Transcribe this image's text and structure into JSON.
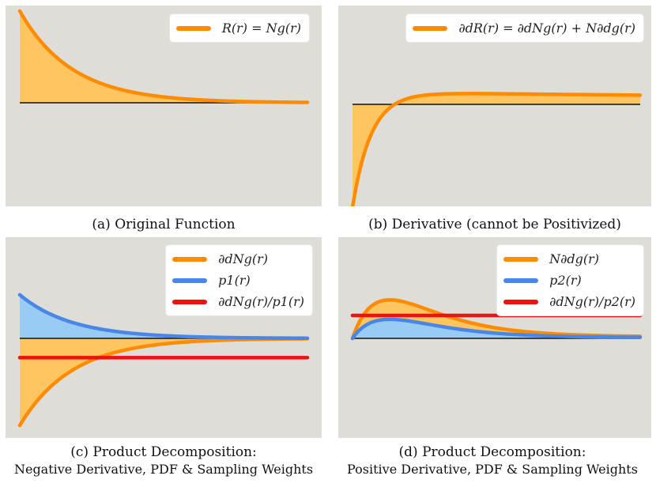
{
  "colors": {
    "orange": "#ff8c00",
    "orange_fill": "#ffc560",
    "blue": "#4a86e8",
    "blue_fill": "#99ccf5",
    "red": "#ee1111",
    "panel_bg": "#deddd7",
    "axis": "#111111"
  },
  "chart_data": [
    {
      "id": "a",
      "type": "area",
      "x_range": [
        0,
        10
      ],
      "ylim": [
        -2,
        2
      ],
      "baseline": 0,
      "caption_lines": [
        "(a) Original Function"
      ],
      "series": [
        {
          "name": "R(r) = Ng(r)",
          "kind": "decay",
          "amplitude": 2.0,
          "rate": 0.55,
          "color": "#ff8c00",
          "fill": "#ffc560"
        }
      ]
    },
    {
      "id": "b",
      "type": "area",
      "x_range": [
        0,
        10
      ],
      "ylim": [
        -2,
        2
      ],
      "baseline": 0,
      "caption_lines": [
        "(b) Derivative (cannot be Positivized)"
      ],
      "series": [
        {
          "name": "∂dR(r) = ∂dNg(r) + N∂dg(r)",
          "kind": "derivative",
          "neg_amp": 2.25,
          "neg_rate": 1.55,
          "pos_amp": 0.27,
          "pos_decay": 0.03,
          "color": "#ff8c00",
          "fill": "#ffc560"
        }
      ]
    },
    {
      "id": "c",
      "type": "area",
      "x_range": [
        0,
        10
      ],
      "ylim": [
        -2,
        2
      ],
      "baseline": 0,
      "caption_lines": [
        "(c) Product Decomposition:",
        "Negative Derivative, PDF & Sampling Weights"
      ],
      "series": [
        {
          "name": "∂dNg(r)",
          "kind": "decay",
          "amplitude": -1.9,
          "rate": 0.55,
          "color": "#ff8c00",
          "fill": "#ffc560"
        },
        {
          "name": "p1(r)",
          "kind": "decay",
          "amplitude": 0.95,
          "rate": 0.55,
          "color": "#4a86e8",
          "fill": "#99ccf5"
        },
        {
          "name": "∂dNg(r)/p1(r)",
          "kind": "constant",
          "value": -0.42,
          "color": "#ee1111"
        }
      ]
    },
    {
      "id": "d",
      "type": "area",
      "x_range": [
        0,
        10
      ],
      "ylim": [
        -2,
        2
      ],
      "baseline": 0,
      "caption_lines": [
        "(d) Product Decomposition:",
        "Positive Derivative, PDF & Sampling Weights"
      ],
      "series": [
        {
          "name": "N∂dg(r)",
          "kind": "bump",
          "amplitude": 0.85,
          "peak": 1.3,
          "color": "#ff8c00",
          "fill": "#ffc560"
        },
        {
          "name": "p2(r)",
          "kind": "bump",
          "amplitude": 0.42,
          "peak": 1.3,
          "color": "#4a86e8",
          "fill": "#99ccf5"
        },
        {
          "name": "∂dNg(r)/p2(r)",
          "kind": "constant",
          "value": 0.5,
          "color": "#ee1111"
        }
      ]
    }
  ]
}
